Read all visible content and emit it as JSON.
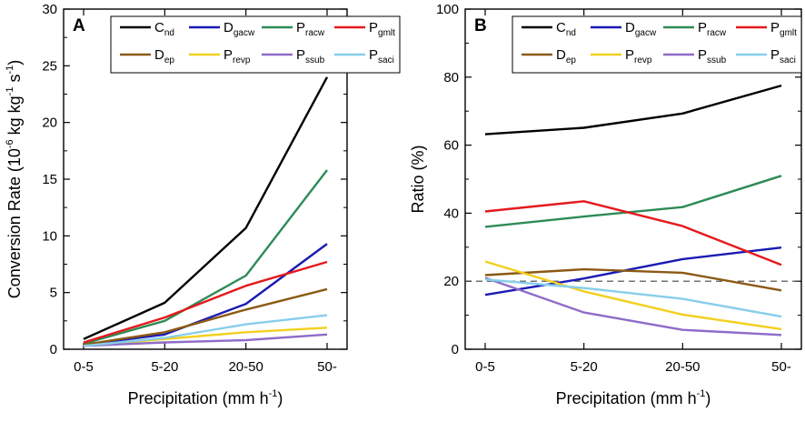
{
  "chart_data": [
    {
      "panel": "A",
      "type": "line",
      "categories": [
        "0-5",
        "5-20",
        "20-50",
        "50-"
      ],
      "xlabel_main": "Precipitation (mm h",
      "xlabel_sup": "-1",
      "xlabel_end": ")",
      "ylabel_main": "Conversion Rate (10",
      "ylabel_sup1": "-6",
      "ylabel_mid": " kg kg",
      "ylabel_sup2": "-1",
      "ylabel_s": " s",
      "ylabel_sup3": "-1",
      "ylabel_end": ")",
      "ylim": [
        0,
        30
      ],
      "yticks": [
        0,
        5,
        10,
        15,
        20,
        25,
        30
      ],
      "ytick_labels": [
        "0",
        "5",
        "10",
        "15",
        "20",
        "25",
        "30"
      ],
      "series": [
        {
          "key": "cnd",
          "base": "C",
          "sub": "nd",
          "color": "#000000",
          "values": [
            0.9,
            4.1,
            10.7,
            24.0
          ]
        },
        {
          "key": "dgacw",
          "base": "D",
          "sub": "gacw",
          "color": "#1a1ab4",
          "values": [
            0.4,
            1.3,
            4.0,
            9.3
          ]
        },
        {
          "key": "pracw",
          "base": "P",
          "sub": "racw",
          "color": "#2e8b57",
          "values": [
            0.5,
            2.5,
            6.5,
            15.8
          ]
        },
        {
          "key": "pgmlt",
          "base": "P",
          "sub": "gmlt",
          "color": "#e41a1c",
          "values": [
            0.6,
            2.8,
            5.6,
            7.7
          ]
        },
        {
          "key": "dep",
          "base": "D",
          "sub": "ep",
          "color": "#8b5a14",
          "values": [
            0.4,
            1.5,
            3.5,
            5.3
          ]
        },
        {
          "key": "prevp",
          "base": "P",
          "sub": "revp",
          "color": "#f2d01e",
          "values": [
            0.3,
            0.9,
            1.5,
            1.9
          ]
        },
        {
          "key": "pssub",
          "base": "P",
          "sub": "ssub",
          "color": "#8e6cc8",
          "values": [
            0.3,
            0.6,
            0.8,
            1.3
          ]
        },
        {
          "key": "psaci",
          "base": "P",
          "sub": "saci",
          "color": "#87ceeb",
          "values": [
            0.3,
            1.0,
            2.2,
            3.0
          ]
        }
      ]
    },
    {
      "panel": "B",
      "type": "line",
      "categories": [
        "0-5",
        "5-20",
        "20-50",
        "50-"
      ],
      "xlabel_main": "Precipitation (mm h",
      "xlabel_sup": "-1",
      "xlabel_end": ")",
      "ylabel": "Ratio (%)",
      "ylim": [
        0,
        100
      ],
      "yticks": [
        0,
        20,
        40,
        60,
        80,
        100
      ],
      "ytick_labels": [
        "0",
        "20",
        "40",
        "60",
        "80",
        "100"
      ],
      "reference_line": 20,
      "series": [
        {
          "key": "cnd",
          "base": "C",
          "sub": "nd",
          "color": "#000000",
          "values": [
            63.2,
            65.1,
            69.3,
            77.5
          ]
        },
        {
          "key": "dgacw",
          "base": "D",
          "sub": "gacw",
          "color": "#1a1ab4",
          "values": [
            16.0,
            20.8,
            26.5,
            29.9
          ]
        },
        {
          "key": "pracw",
          "base": "P",
          "sub": "racw",
          "color": "#2e8b57",
          "values": [
            36.0,
            39.0,
            41.8,
            51.0
          ]
        },
        {
          "key": "pgmlt",
          "base": "P",
          "sub": "gmlt",
          "color": "#e41a1c",
          "values": [
            40.5,
            43.5,
            36.2,
            24.8
          ]
        },
        {
          "key": "dep",
          "base": "D",
          "sub": "ep",
          "color": "#8b5a14",
          "values": [
            21.8,
            23.5,
            22.5,
            17.3
          ]
        },
        {
          "key": "prevp",
          "base": "P",
          "sub": "revp",
          "color": "#f2d01e",
          "values": [
            25.8,
            17.0,
            10.2,
            5.9
          ]
        },
        {
          "key": "pssub",
          "base": "P",
          "sub": "ssub",
          "color": "#8e6cc8",
          "values": [
            21.0,
            10.8,
            5.7,
            4.2
          ]
        },
        {
          "key": "psaci",
          "base": "P",
          "sub": "saci",
          "color": "#87ceeb",
          "values": [
            20.5,
            18.0,
            14.8,
            9.6
          ]
        }
      ]
    }
  ]
}
